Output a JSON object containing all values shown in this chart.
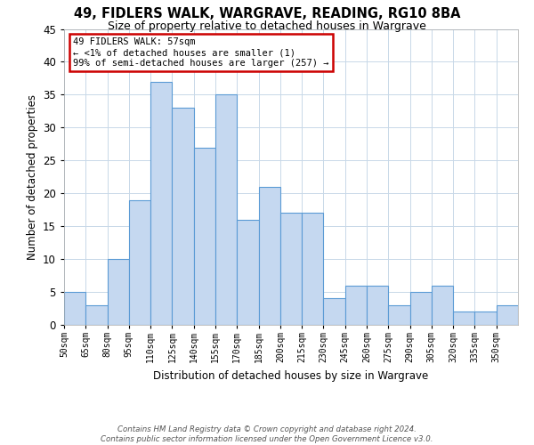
{
  "title1": "49, FIDLERS WALK, WARGRAVE, READING, RG10 8BA",
  "title2": "Size of property relative to detached houses in Wargrave",
  "xlabel": "Distribution of detached houses by size in Wargrave",
  "ylabel": "Number of detached properties",
  "bin_labels": [
    "50sqm",
    "65sqm",
    "80sqm",
    "95sqm",
    "110sqm",
    "125sqm",
    "140sqm",
    "155sqm",
    "170sqm",
    "185sqm",
    "200sqm",
    "215sqm",
    "230sqm",
    "245sqm",
    "260sqm",
    "275sqm",
    "290sqm",
    "305sqm",
    "320sqm",
    "335sqm",
    "350sqm"
  ],
  "bar_values": [
    5,
    3,
    10,
    19,
    37,
    33,
    27,
    35,
    16,
    21,
    17,
    17,
    4,
    6,
    6,
    3,
    5,
    6,
    2,
    2,
    3
  ],
  "bar_color": "#c5d8f0",
  "bar_edge_color": "#5b9bd5",
  "annotation_line1": "49 FIDLERS WALK: 57sqm",
  "annotation_line2": "← <1% of detached houses are smaller (1)",
  "annotation_line3": "99% of semi-detached houses are larger (257) →",
  "annotation_box_color": "#ffffff",
  "annotation_box_edge": "#cc0000",
  "ylim": [
    0,
    45
  ],
  "yticks": [
    0,
    5,
    10,
    15,
    20,
    25,
    30,
    35,
    40,
    45
  ],
  "footer1": "Contains HM Land Registry data © Crown copyright and database right 2024.",
  "footer2": "Contains public sector information licensed under the Open Government Licence v3.0.",
  "bg_color": "#ffffff",
  "grid_color": "#c8d8e8"
}
